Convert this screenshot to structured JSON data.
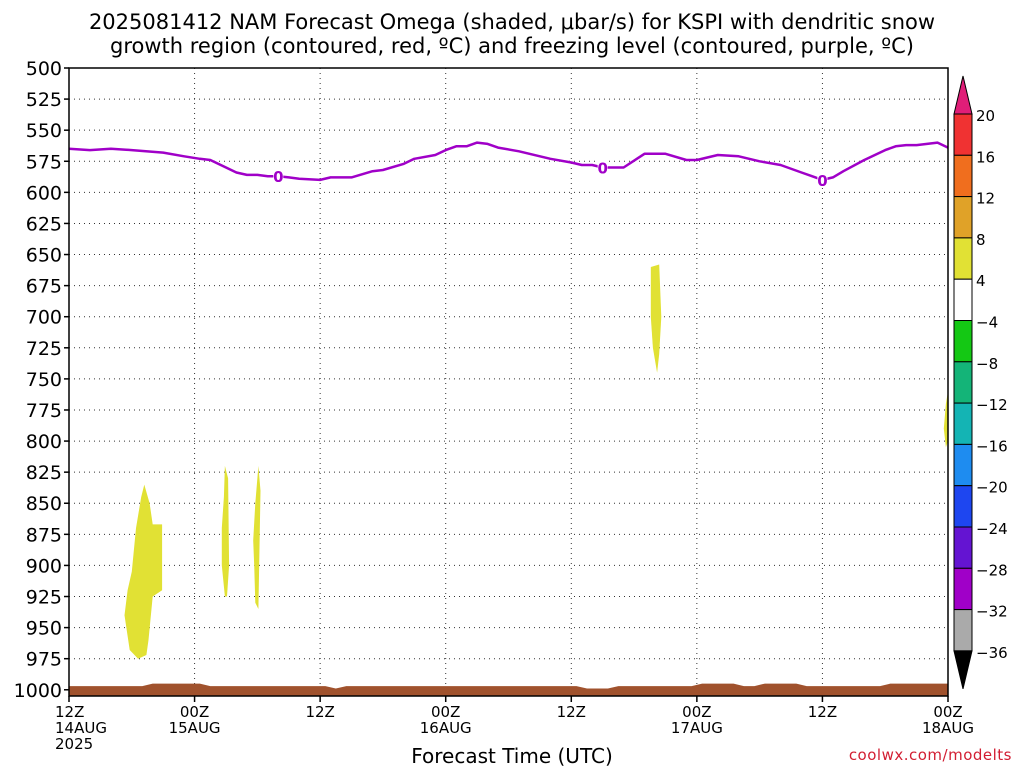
{
  "chart_data": {
    "type": "heatmap",
    "title_line1": "2025081412 NAM Forecast Omega (shaded, μbar/s) for KSPI with dendritic snow",
    "title_line2": "growth region (contoured, red, ºC) and freezing level (contoured, purple, ºC)",
    "xlabel": "Forecast Time (UTC)",
    "y_ticks": [
      500,
      525,
      550,
      575,
      600,
      625,
      650,
      675,
      700,
      725,
      750,
      775,
      800,
      825,
      850,
      875,
      900,
      925,
      950,
      975,
      1000
    ],
    "ylim": [
      1005,
      500
    ],
    "xlim_hours": [
      0,
      84
    ],
    "x_ticks": [
      {
        "hour": 0,
        "line1": "12Z",
        "line2": "14AUG",
        "line3": "2025"
      },
      {
        "hour": 12,
        "line1": "00Z",
        "line2": "15AUG",
        "line3": ""
      },
      {
        "hour": 24,
        "line1": "12Z",
        "line2": "",
        "line3": ""
      },
      {
        "hour": 36,
        "line1": "00Z",
        "line2": "16AUG",
        "line3": ""
      },
      {
        "hour": 48,
        "line1": "12Z",
        "line2": "",
        "line3": ""
      },
      {
        "hour": 60,
        "line1": "00Z",
        "line2": "17AUG",
        "line3": ""
      },
      {
        "hour": 72,
        "line1": "12Z",
        "line2": "",
        "line3": ""
      },
      {
        "hour": 84,
        "line1": "00Z",
        "line2": "18AUG",
        "line3": ""
      }
    ],
    "grid": "dotted",
    "freezing_level": {
      "label": "0",
      "color": "#a000c8",
      "label_hours": [
        20,
        51,
        72
      ],
      "points": [
        [
          0,
          565
        ],
        [
          2,
          566
        ],
        [
          4,
          565
        ],
        [
          6,
          566
        ],
        [
          9,
          568
        ],
        [
          11,
          571
        ],
        [
          12.5,
          573
        ],
        [
          13.5,
          574
        ],
        [
          15,
          580
        ],
        [
          16,
          584
        ],
        [
          17,
          586
        ],
        [
          18,
          586
        ],
        [
          19,
          587
        ],
        [
          20,
          587
        ],
        [
          21,
          588
        ],
        [
          22,
          589
        ],
        [
          24,
          590
        ],
        [
          25,
          588
        ],
        [
          27,
          588
        ],
        [
          29,
          583
        ],
        [
          30,
          582
        ],
        [
          32,
          577
        ],
        [
          33,
          573
        ],
        [
          35,
          570
        ],
        [
          36,
          566
        ],
        [
          37,
          563
        ],
        [
          38,
          563
        ],
        [
          39,
          560
        ],
        [
          40,
          561
        ],
        [
          41,
          564
        ],
        [
          43,
          567
        ],
        [
          45,
          571
        ],
        [
          46,
          573
        ],
        [
          48,
          576
        ],
        [
          49,
          578
        ],
        [
          50,
          578
        ],
        [
          51,
          580
        ],
        [
          53,
          580
        ],
        [
          55,
          569
        ],
        [
          57,
          569
        ],
        [
          59,
          574
        ],
        [
          60,
          574
        ],
        [
          61,
          572
        ],
        [
          62,
          570
        ],
        [
          64,
          571
        ],
        [
          66,
          575
        ],
        [
          68,
          578
        ],
        [
          70,
          584
        ],
        [
          71,
          587
        ],
        [
          72,
          590
        ],
        [
          73,
          588
        ],
        [
          74,
          583
        ],
        [
          76,
          574
        ],
        [
          78,
          566
        ],
        [
          79,
          563
        ],
        [
          80,
          562
        ],
        [
          81,
          562
        ],
        [
          82,
          561
        ],
        [
          83,
          560
        ],
        [
          84,
          564
        ]
      ]
    },
    "omega_regions": [
      {
        "color": "#e1e134",
        "points": [
          [
            5.3,
            940
          ],
          [
            5.6,
            920
          ],
          [
            6.0,
            905
          ],
          [
            6.4,
            870
          ],
          [
            6.9,
            845
          ],
          [
            7.2,
            835
          ],
          [
            7.7,
            850
          ],
          [
            8.0,
            867
          ],
          [
            8.9,
            867
          ],
          [
            8.9,
            920
          ],
          [
            8.0,
            925
          ],
          [
            7.6,
            960
          ],
          [
            7.4,
            972
          ],
          [
            6.6,
            975
          ],
          [
            5.8,
            968
          ]
        ]
      },
      {
        "color": "#e1e134",
        "points": [
          [
            14.6,
            870
          ],
          [
            14.8,
            845
          ],
          [
            14.9,
            820
          ],
          [
            15.2,
            830
          ],
          [
            15.3,
            900
          ],
          [
            15.1,
            925
          ],
          [
            14.9,
            925
          ],
          [
            14.6,
            900
          ]
        ]
      },
      {
        "color": "#e1e134",
        "points": [
          [
            17.6,
            880
          ],
          [
            17.8,
            850
          ],
          [
            18.1,
            820
          ],
          [
            18.3,
            840
          ],
          [
            18.2,
            890
          ],
          [
            18.1,
            935
          ],
          [
            17.8,
            930
          ],
          [
            17.7,
            900
          ]
        ]
      },
      {
        "color": "#e1e134",
        "points": [
          [
            55.6,
            660
          ],
          [
            56.4,
            658
          ],
          [
            56.6,
            700
          ],
          [
            56.4,
            730
          ],
          [
            56.2,
            745
          ],
          [
            55.8,
            725
          ],
          [
            55.6,
            700
          ]
        ]
      },
      {
        "color": "#e1e134",
        "points": [
          [
            83.6,
            790
          ],
          [
            83.8,
            770
          ],
          [
            84.0,
            760
          ],
          [
            84.0,
            800
          ],
          [
            83.8,
            805
          ]
        ]
      }
    ],
    "surface_band": {
      "color": "#a0522d",
      "top_points": [
        [
          0,
          997
        ],
        [
          7,
          997
        ],
        [
          8,
          995
        ],
        [
          12.5,
          995
        ],
        [
          13.5,
          997
        ],
        [
          24.5,
          997
        ],
        [
          25.5,
          999
        ],
        [
          26.5,
          997
        ],
        [
          48.5,
          997
        ],
        [
          49.5,
          999
        ],
        [
          51.5,
          999
        ],
        [
          52.5,
          997
        ],
        [
          59.5,
          997
        ],
        [
          60.5,
          995
        ],
        [
          63.5,
          995
        ],
        [
          64.5,
          997
        ],
        [
          65.5,
          997
        ],
        [
          66.5,
          995
        ],
        [
          69.5,
          995
        ],
        [
          70.5,
          997
        ],
        [
          77.5,
          997
        ],
        [
          78.5,
          995
        ],
        [
          84,
          995
        ]
      ]
    },
    "colorbar": {
      "labels": [
        "20",
        "16",
        "12",
        "8",
        "4",
        "−4",
        "−8",
        "−12",
        "−16",
        "−20",
        "−24",
        "−28",
        "−32",
        "−36"
      ],
      "top_color": "#e01e78",
      "bottom_color": "#000000",
      "segments": [
        "#f03232",
        "#f06e1e",
        "#e0a228",
        "#e1e134",
        "#ffffff",
        "#14c814",
        "#14b478",
        "#14b4b4",
        "#1e8cf0",
        "#1e46f0",
        "#6414d2",
        "#a000c8",
        "#aaaaaa"
      ]
    }
  },
  "credit": "coolwx.com/modelts"
}
